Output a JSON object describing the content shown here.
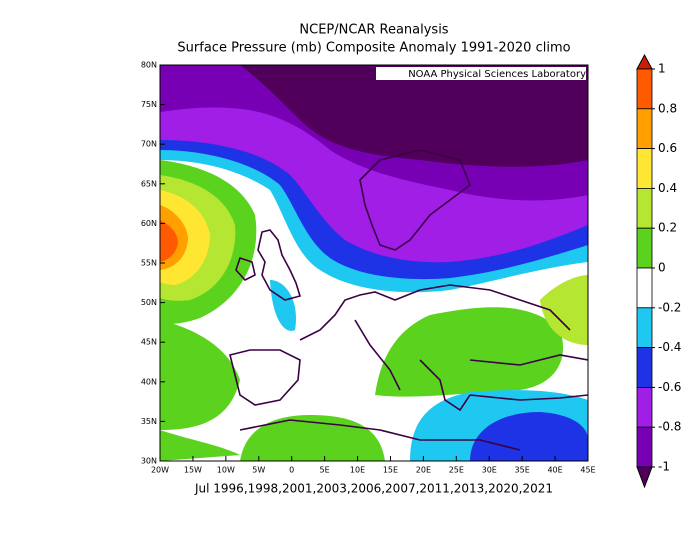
{
  "header": {
    "title": "NCEP/NCAR Reanalysis",
    "subtitle": "Surface Pressure (mb) Composite Anomaly 1991-2020 climo"
  },
  "map": {
    "credit": "NOAA Physical Sciences Laboratory",
    "caption": "Jul 1996,1998,2001,2003,2006,2007,2011,2013,2020,2021",
    "lon_ticks": [
      {
        "value": -20,
        "label": "20W"
      },
      {
        "value": -15,
        "label": "15W"
      },
      {
        "value": -10,
        "label": "10W"
      },
      {
        "value": -5,
        "label": "5W"
      },
      0,
      {
        "value": 5,
        "label": "5E"
      },
      {
        "value": 10,
        "label": "10E"
      },
      {
        "value": 15,
        "label": "15E"
      },
      {
        "value": 20,
        "label": "20E"
      },
      {
        "value": 25,
        "label": "25E"
      },
      {
        "value": 30,
        "label": "30E"
      },
      {
        "value": 35,
        "label": "35E"
      },
      {
        "value": 40,
        "label": "40E"
      },
      {
        "value": 45,
        "label": "45E"
      }
    ],
    "lat_ticks": [
      {
        "value": 30,
        "label": "30N"
      },
      {
        "value": 35,
        "label": "35N"
      },
      {
        "value": 40,
        "label": "40N"
      },
      {
        "value": 45,
        "label": "45N"
      },
      {
        "value": 50,
        "label": "50N"
      },
      {
        "value": 55,
        "label": "55N"
      },
      {
        "value": 60,
        "label": "60N"
      },
      {
        "value": 65,
        "label": "65N"
      },
      {
        "value": 70,
        "label": "70N"
      },
      {
        "value": 75,
        "label": "75N"
      },
      {
        "value": 80,
        "label": "80N"
      }
    ]
  },
  "colorbar": {
    "ticks": [
      1,
      0.8,
      0.6,
      0.4,
      0.2,
      0,
      -0.2,
      -0.4,
      -0.6,
      -0.8,
      -1
    ],
    "colors": [
      "#c81e0a",
      "#ff5a00",
      "#ffa000",
      "#ffe632",
      "#b4e632",
      "#5ad21e",
      "#ffffff",
      "#1ec8f0",
      "#1e32e6",
      "#a01ee6",
      "#7800b4",
      "#50005a"
    ]
  }
}
